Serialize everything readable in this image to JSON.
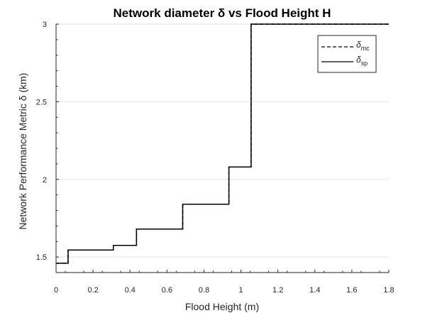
{
  "chart_data": {
    "type": "line",
    "title": "Network diameter δ vs Flood Height H",
    "xlabel": "Flood Height (m)",
    "ylabel": "Network Performance Metric δ (km)",
    "xlim": [
      0,
      1.8
    ],
    "ylim": [
      1.4,
      3.0
    ],
    "x_ticks": [
      "0",
      "0.2",
      "0.4",
      "0.6",
      "0.8",
      "1",
      "1.2",
      "1.4",
      "1.6",
      "1.8"
    ],
    "y_ticks": [
      "1.5",
      "2",
      "2.5",
      "3"
    ],
    "grid": "horizontal",
    "legend_position": "top-right",
    "series": [
      {
        "name": "δmc",
        "legend_symbol": "δ",
        "legend_sub": "mc",
        "style": "dashed",
        "color": "#000000",
        "x": [
          0,
          0.065,
          0.065,
          0.31,
          0.31,
          0.435,
          0.435,
          0.685,
          0.685,
          0.935,
          0.935,
          1.055,
          1.055,
          1.8
        ],
        "y": [
          1.46,
          1.46,
          1.545,
          1.545,
          1.575,
          1.575,
          1.68,
          1.68,
          1.84,
          1.84,
          2.08,
          2.08,
          3.0,
          3.0
        ]
      },
      {
        "name": "δsp",
        "legend_symbol": "δ",
        "legend_sub": "sp",
        "style": "solid",
        "color": "#000000",
        "x": [
          0,
          0.065,
          0.065,
          0.31,
          0.31,
          0.435,
          0.435,
          0.685,
          0.685,
          0.935,
          0.935,
          1.055,
          1.055,
          1.8
        ],
        "y": [
          1.46,
          1.46,
          1.545,
          1.545,
          1.575,
          1.575,
          1.68,
          1.68,
          1.84,
          1.84,
          2.08,
          2.08,
          3.0,
          3.0
        ]
      }
    ]
  }
}
